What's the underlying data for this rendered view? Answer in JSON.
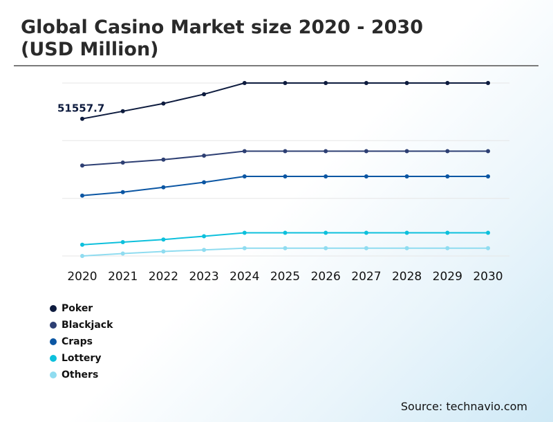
{
  "header": {
    "title_line1": "Global Casino Market size 2020 - 2030",
    "title_line2": "(USD Million)"
  },
  "source": "Source: technavio.com",
  "chart_data": {
    "type": "line",
    "title": "Global Casino Market size 2020 - 2030 (USD Million)",
    "xlabel": "",
    "ylabel": "",
    "x": [
      "2020",
      "2021",
      "2022",
      "2023",
      "2024",
      "2025",
      "2026",
      "2027",
      "2028",
      "2029",
      "2030"
    ],
    "ylim": [
      0,
      100000
    ],
    "grid": true,
    "legend_position": "bottom-left",
    "annotations": [
      {
        "series": "Poker",
        "x": "2020",
        "text": "51557.7"
      }
    ],
    "series": [
      {
        "name": "Poker",
        "color": "#0d1b3e",
        "values": [
          51557.7,
          54400,
          57300,
          60800,
          65000,
          65000,
          65000,
          65000,
          65000,
          65000,
          65000
        ]
      },
      {
        "name": "Blackjack",
        "color": "#2d3f73",
        "values": [
          34000,
          35100,
          36200,
          37700,
          39400,
          39400,
          39400,
          39400,
          39400,
          39400,
          39400
        ]
      },
      {
        "name": "Craps",
        "color": "#0b56a3",
        "values": [
          22700,
          24000,
          25800,
          27700,
          29900,
          29900,
          29900,
          29900,
          29900,
          29900,
          29900
        ]
      },
      {
        "name": "Lottery",
        "color": "#0dc0dc",
        "values": [
          4200,
          5200,
          6200,
          7400,
          8700,
          8700,
          8700,
          8700,
          8700,
          8700,
          8700
        ]
      },
      {
        "name": "Others",
        "color": "#8fdcf0",
        "values": [
          0,
          900,
          1700,
          2300,
          2900,
          2900,
          2900,
          2900,
          2900,
          2900,
          2900
        ]
      }
    ]
  }
}
